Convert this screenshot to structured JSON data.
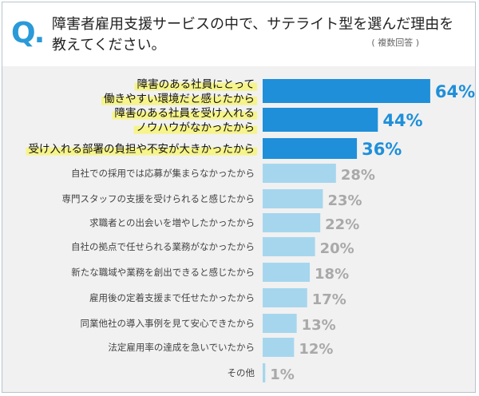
{
  "header": {
    "q_mark": "Q.",
    "title_line1": "障害者雇用支援サービスの中で、サテライト型を選んだ理由を",
    "title_line2": "教えてください。",
    "note": "( 複数回答 )"
  },
  "colors": {
    "accent": "#2a9ad8",
    "bar_highlight": "#1f8fd9",
    "bar_normal": "#a6d6ee",
    "label_highlight_bg": "#f6f48a",
    "value_highlight": "#1f8fd9",
    "value_normal": "#a9a9a9",
    "background": "#f1f1f1"
  },
  "chart_data": {
    "type": "bar",
    "orientation": "horizontal",
    "categories": [
      [
        "障害のある社員にとって",
        "働きやすい環境だと感じたから"
      ],
      [
        "障害のある社員を受け入れる",
        "ノウハウがなかったから"
      ],
      [
        "受け入れる部署の負担や不安が大きかったから"
      ],
      [
        "自社での採用では応募が集まらなかったから"
      ],
      [
        "専門スタッフの支援を受けられると感じたから"
      ],
      [
        "求職者との出会いを増やしたかったから"
      ],
      [
        "自社の拠点で任せられる業務がなかったから"
      ],
      [
        "新たな職域や業務を創出できると感じたから"
      ],
      [
        "雇用後の定着支援まで任せたかったから"
      ],
      [
        "同業他社の導入事例を見て安心できたから"
      ],
      [
        "法定雇用率の達成を急いでいたから"
      ],
      [
        "その他"
      ]
    ],
    "values": [
      64,
      44,
      36,
      28,
      23,
      22,
      20,
      18,
      17,
      13,
      12,
      1
    ],
    "value_labels": [
      "64%",
      "44%",
      "36%",
      "28%",
      "23%",
      "22%",
      "20%",
      "18%",
      "17%",
      "13%",
      "12%",
      "1%"
    ],
    "highlighted": [
      true,
      true,
      true,
      false,
      false,
      false,
      false,
      false,
      false,
      false,
      false,
      false
    ],
    "unit": "%"
  }
}
